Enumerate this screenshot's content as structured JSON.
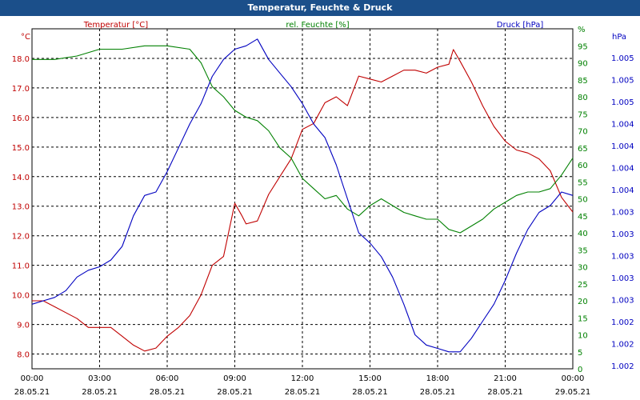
{
  "title": "Temperatur, Feuchte & Druck",
  "colors": {
    "title_bg": "#1b4f8a",
    "temperature": "#c00000",
    "humidity": "#008000",
    "pressure": "#0000c0",
    "grid": "#000000"
  },
  "chart_data": {
    "type": "line",
    "title": "Temperatur, Feuchte & Druck",
    "grid": true,
    "x": {
      "ticks": [
        {
          "time": "00:00",
          "date": "28.05.21"
        },
        {
          "time": "03:00",
          "date": "28.05.21"
        },
        {
          "time": "06:00",
          "date": "28.05.21"
        },
        {
          "time": "09:00",
          "date": "28.05.21"
        },
        {
          "time": "12:00",
          "date": "28.05.21"
        },
        {
          "time": "15:00",
          "date": "28.05.21"
        },
        {
          "time": "18:00",
          "date": "28.05.21"
        },
        {
          "time": "21:00",
          "date": "28.05.21"
        },
        {
          "time": "00:00",
          "date": "29.05.21"
        }
      ],
      "range_hours": [
        0,
        24
      ]
    },
    "axes": {
      "temperature": {
        "label": "Temperatur [°C]",
        "unit": "°C",
        "range": [
          7.5,
          19.0
        ],
        "ticks": [
          "8.0",
          "9.0",
          "10.0",
          "11.0",
          "12.0",
          "13.0",
          "14.0",
          "15.0",
          "16.0",
          "17.0",
          "18.0"
        ]
      },
      "humidity": {
        "label": "rel. Feuchte [%]",
        "unit": "%",
        "range": [
          0,
          100
        ],
        "ticks": [
          "0",
          "5",
          "10",
          "15",
          "20",
          "25",
          "30",
          "35",
          "40",
          "45",
          "50",
          "55",
          "60",
          "65",
          "70",
          "75",
          "80",
          "85",
          "90",
          "95",
          "%"
        ]
      },
      "pressure": {
        "label": "Druck [hPa]",
        "unit": "hPa",
        "ticks": [
          "1.002",
          "1.002",
          "1.002",
          "1.003",
          "1.003",
          "1.003",
          "1.003",
          "1.003",
          "1.004",
          "1.004",
          "1.004",
          "1.004",
          "1.005",
          "1.005",
          "1.005"
        ]
      }
    },
    "series": [
      {
        "name": "Temperatur [°C]",
        "axis": "temperature",
        "points": [
          [
            0,
            9.8
          ],
          [
            0.5,
            9.8
          ],
          [
            1,
            9.6
          ],
          [
            1.5,
            9.4
          ],
          [
            2,
            9.2
          ],
          [
            2.5,
            8.9
          ],
          [
            3,
            8.9
          ],
          [
            3.5,
            8.9
          ],
          [
            4,
            8.6
          ],
          [
            4.5,
            8.3
          ],
          [
            5,
            8.1
          ],
          [
            5.5,
            8.2
          ],
          [
            6,
            8.6
          ],
          [
            6.5,
            8.9
          ],
          [
            7,
            9.3
          ],
          [
            7.5,
            10.0
          ],
          [
            8,
            11.0
          ],
          [
            8.5,
            11.3
          ],
          [
            9,
            13.1
          ],
          [
            9.3,
            12.7
          ],
          [
            9.5,
            12.4
          ],
          [
            10,
            12.5
          ],
          [
            10.5,
            13.4
          ],
          [
            11,
            14.0
          ],
          [
            11.5,
            14.6
          ],
          [
            12,
            15.6
          ],
          [
            12.5,
            15.8
          ],
          [
            13,
            16.5
          ],
          [
            13.5,
            16.7
          ],
          [
            14,
            16.4
          ],
          [
            14.5,
            17.4
          ],
          [
            15,
            17.3
          ],
          [
            15.5,
            17.2
          ],
          [
            16,
            17.4
          ],
          [
            16.5,
            17.6
          ],
          [
            17,
            17.6
          ],
          [
            17.5,
            17.5
          ],
          [
            18,
            17.7
          ],
          [
            18.5,
            17.8
          ],
          [
            18.7,
            18.3
          ],
          [
            19,
            17.9
          ],
          [
            19.5,
            17.2
          ],
          [
            20,
            16.4
          ],
          [
            20.5,
            15.7
          ],
          [
            21,
            15.2
          ],
          [
            21.5,
            14.9
          ],
          [
            22,
            14.8
          ],
          [
            22.5,
            14.6
          ],
          [
            23,
            14.2
          ],
          [
            23.5,
            13.3
          ],
          [
            24,
            12.8
          ]
        ]
      },
      {
        "name": "rel. Feuchte [%]",
        "axis": "humidity",
        "points": [
          [
            0,
            91
          ],
          [
            1,
            91
          ],
          [
            2,
            92
          ],
          [
            3,
            94
          ],
          [
            4,
            94
          ],
          [
            5,
            95
          ],
          [
            6,
            95
          ],
          [
            7,
            94
          ],
          [
            7.5,
            90
          ],
          [
            8,
            83
          ],
          [
            8.5,
            80
          ],
          [
            9,
            76
          ],
          [
            9.5,
            74
          ],
          [
            10,
            73
          ],
          [
            10.5,
            70
          ],
          [
            11,
            65
          ],
          [
            11.5,
            62
          ],
          [
            12,
            56
          ],
          [
            12.5,
            53
          ],
          [
            13,
            50
          ],
          [
            13.5,
            51
          ],
          [
            14,
            47
          ],
          [
            14.5,
            45
          ],
          [
            15,
            48
          ],
          [
            15.5,
            50
          ],
          [
            16,
            48
          ],
          [
            16.5,
            46
          ],
          [
            17,
            45
          ],
          [
            17.5,
            44
          ],
          [
            18,
            44
          ],
          [
            18.5,
            41
          ],
          [
            19,
            40
          ],
          [
            19.5,
            42
          ],
          [
            20,
            44
          ],
          [
            20.5,
            47
          ],
          [
            21,
            49
          ],
          [
            21.5,
            51
          ],
          [
            22,
            52
          ],
          [
            22.5,
            52
          ],
          [
            23,
            53
          ],
          [
            23.5,
            57
          ],
          [
            24,
            62
          ]
        ]
      },
      {
        "name": "Druck [hPa]",
        "axis": "pressure",
        "points": [
          [
            0,
            19
          ],
          [
            0.5,
            20
          ],
          [
            1,
            21
          ],
          [
            1.5,
            23
          ],
          [
            2,
            27
          ],
          [
            2.5,
            29
          ],
          [
            3,
            30
          ],
          [
            3.5,
            32
          ],
          [
            4,
            36
          ],
          [
            4.5,
            45
          ],
          [
            5,
            51
          ],
          [
            5.5,
            52
          ],
          [
            6,
            58
          ],
          [
            6.5,
            65
          ],
          [
            7,
            72
          ],
          [
            7.5,
            78
          ],
          [
            8,
            86
          ],
          [
            8.5,
            91
          ],
          [
            9,
            94
          ],
          [
            9.5,
            95
          ],
          [
            10,
            97
          ],
          [
            10.5,
            91
          ],
          [
            11,
            87
          ],
          [
            11.5,
            83
          ],
          [
            12,
            78
          ],
          [
            12.5,
            72
          ],
          [
            13,
            68
          ],
          [
            13.5,
            60
          ],
          [
            14,
            50
          ],
          [
            14.5,
            40
          ],
          [
            15,
            37
          ],
          [
            15.5,
            33
          ],
          [
            16,
            27
          ],
          [
            16.5,
            19
          ],
          [
            17,
            10
          ],
          [
            17.5,
            7
          ],
          [
            18,
            6
          ],
          [
            18.5,
            5
          ],
          [
            19,
            5
          ],
          [
            19.5,
            9
          ],
          [
            20,
            14
          ],
          [
            20.5,
            19
          ],
          [
            21,
            26
          ],
          [
            21.5,
            34
          ],
          [
            22,
            41
          ],
          [
            22.5,
            46
          ],
          [
            23,
            48
          ],
          [
            23.5,
            52
          ],
          [
            24,
            51
          ]
        ]
      }
    ]
  }
}
